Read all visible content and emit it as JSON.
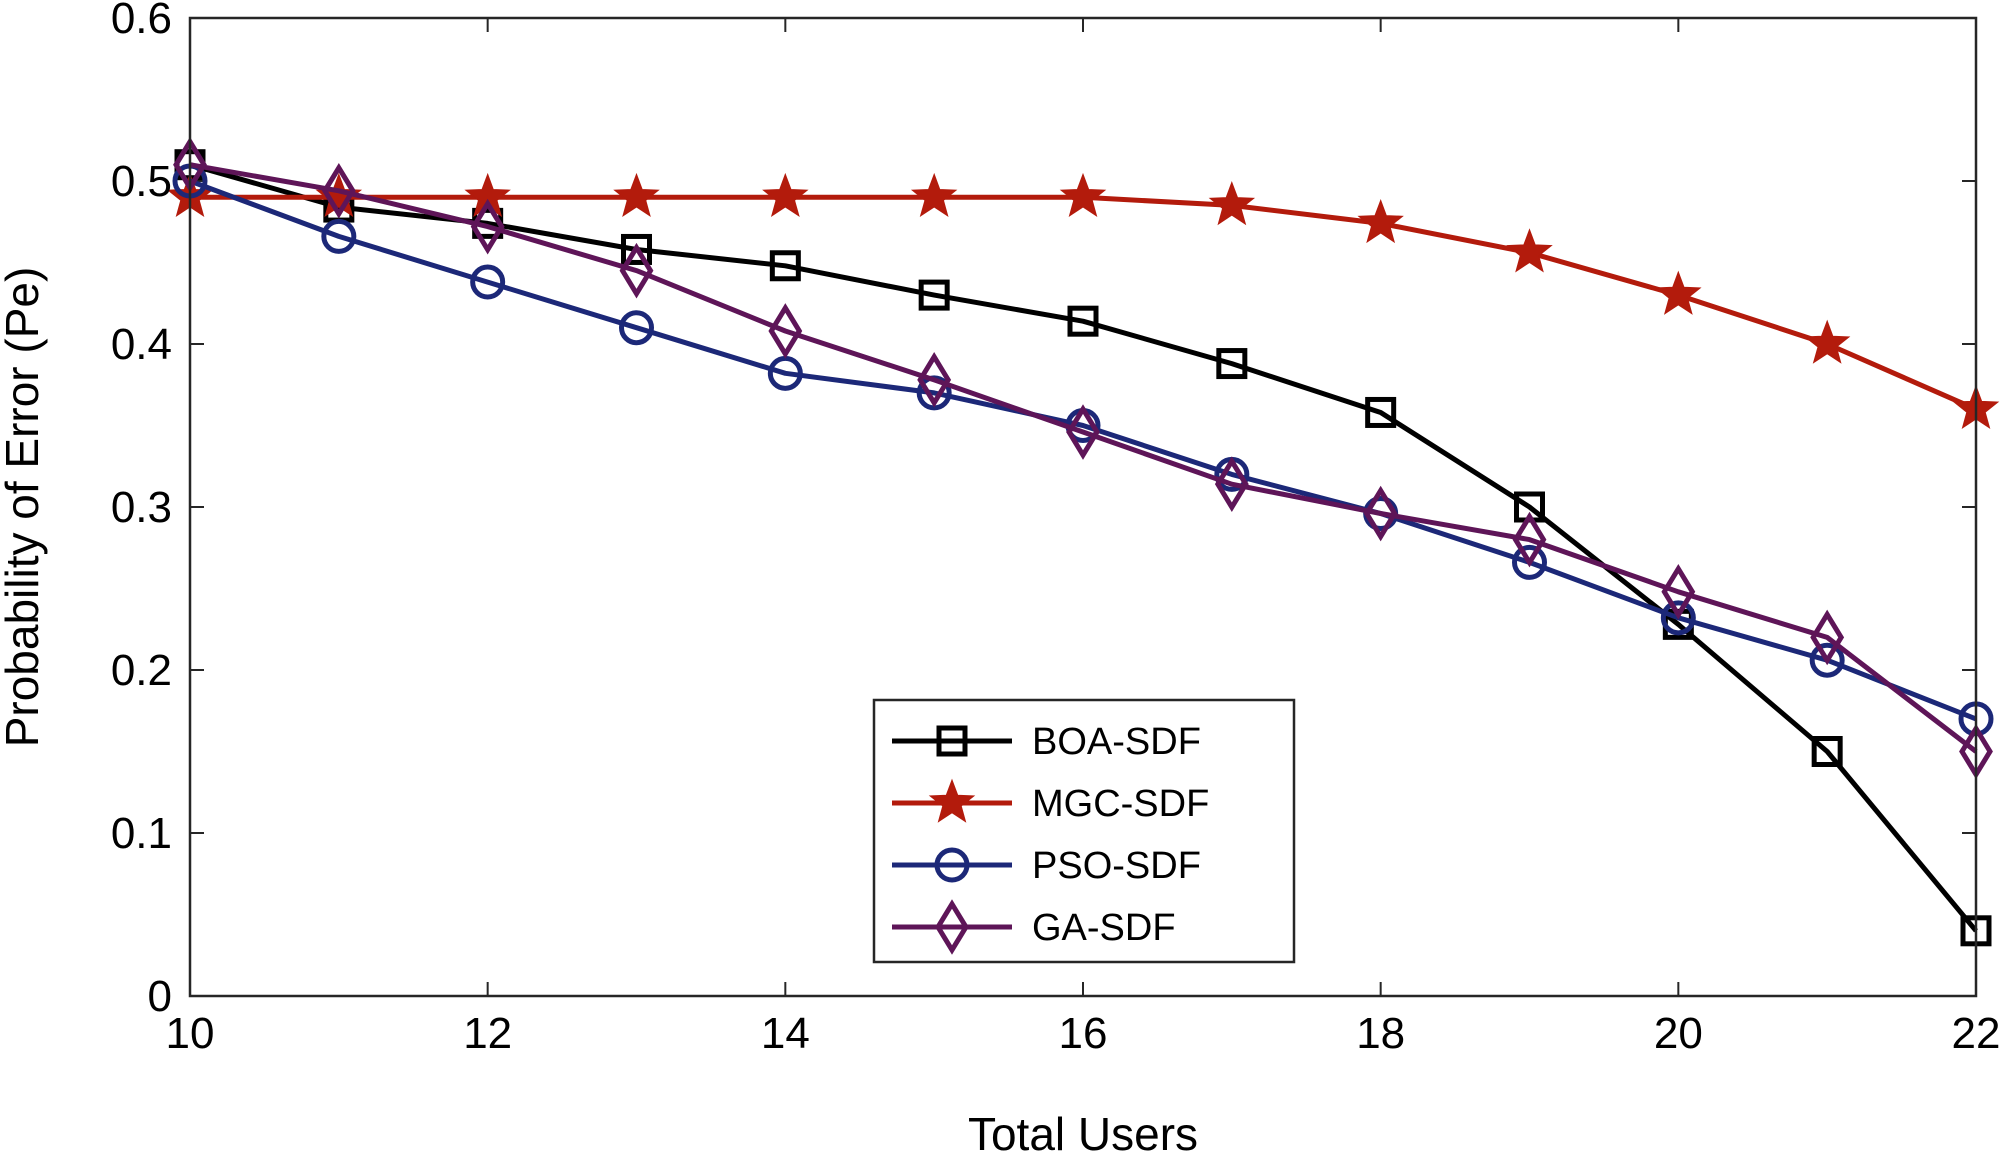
{
  "chart_data": {
    "type": "line",
    "title": "",
    "xlabel": "Total Users",
    "ylabel": "Probability of Error (Pe)",
    "xlim": [
      10,
      22
    ],
    "ylim": [
      0,
      0.6
    ],
    "x": [
      10,
      11,
      12,
      13,
      14,
      15,
      16,
      17,
      18,
      19,
      20,
      21,
      22
    ],
    "xticks": [
      10,
      12,
      14,
      16,
      18,
      20,
      22
    ],
    "xtick_labels": [
      "10",
      "12",
      "14",
      "16",
      "18",
      "20",
      "22"
    ],
    "yticks": [
      0,
      0.1,
      0.2,
      0.3,
      0.4,
      0.5,
      0.6
    ],
    "ytick_labels": [
      "0",
      "0.1",
      "0.2",
      "0.3",
      "0.4",
      "0.5",
      "0.6"
    ],
    "legend_position": "bottom-center",
    "series": [
      {
        "name": "BOA-SDF",
        "marker": "square",
        "color": "#000000",
        "values": [
          0.51,
          0.484,
          0.474,
          0.458,
          0.448,
          0.43,
          0.414,
          0.388,
          0.358,
          0.3,
          0.228,
          0.15,
          0.04
        ]
      },
      {
        "name": "MGC-SDF",
        "marker": "star",
        "color": "#b31b0c",
        "values": [
          0.49,
          0.49,
          0.49,
          0.49,
          0.49,
          0.49,
          0.49,
          0.485,
          0.474,
          0.456,
          0.43,
          0.4,
          0.36
        ]
      },
      {
        "name": "PSO-SDF",
        "marker": "circle",
        "color": "#1c2878",
        "values": [
          0.5,
          0.466,
          0.438,
          0.41,
          0.382,
          0.37,
          0.35,
          0.32,
          0.296,
          0.266,
          0.232,
          0.206,
          0.17
        ]
      },
      {
        "name": "GA-SDF",
        "marker": "diamond",
        "color": "#5e1558",
        "values": [
          0.51,
          0.494,
          0.472,
          0.445,
          0.408,
          0.378,
          0.346,
          0.314,
          0.296,
          0.28,
          0.248,
          0.22,
          0.15
        ]
      }
    ]
  }
}
